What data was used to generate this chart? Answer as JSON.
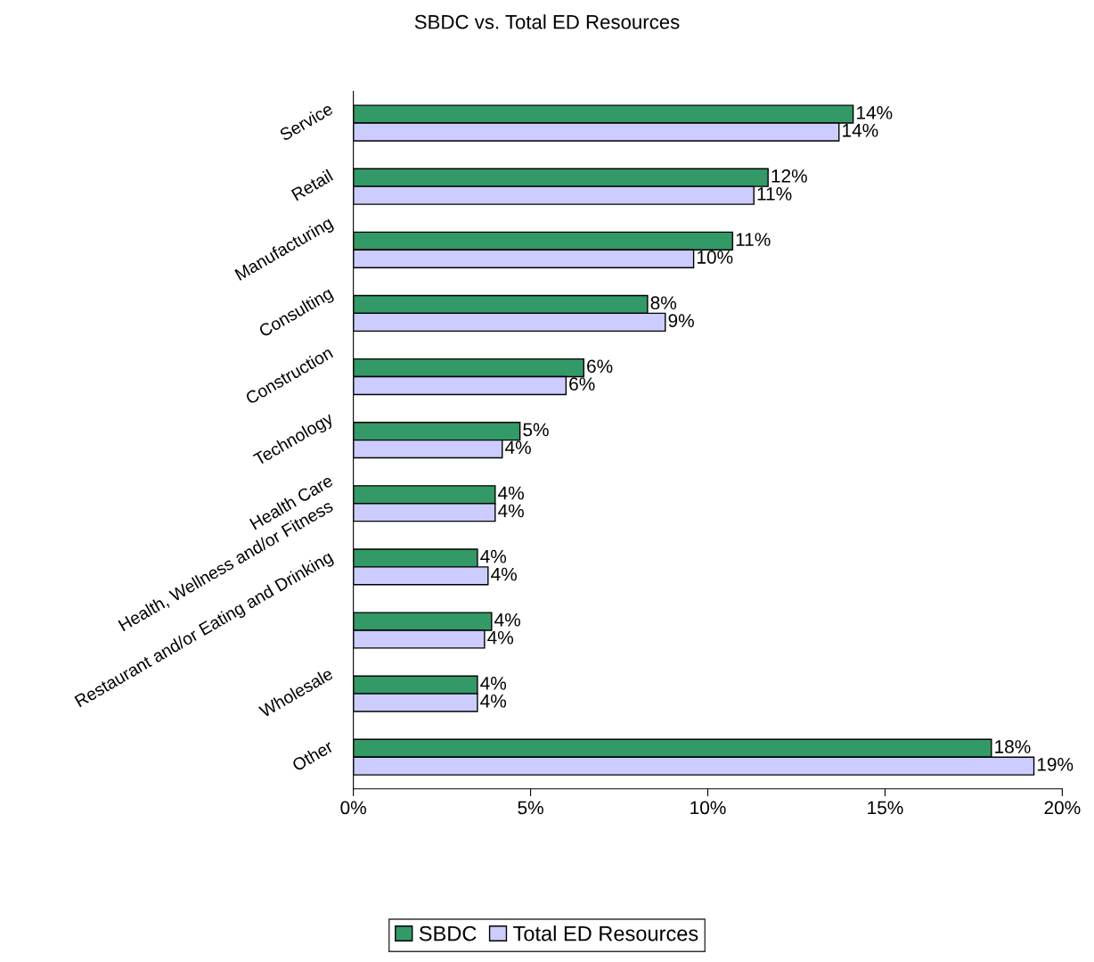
{
  "chart_data": {
    "type": "bar",
    "orientation": "horizontal",
    "title": "SBDC vs. Total ED Resources",
    "categories": [
      "Service",
      "Retail",
      "Manufacturing",
      "Consulting",
      "Construction",
      "Technology",
      "Health Care",
      "Health, Wellness and/or Fitness",
      "Restaurant and/or Eating and Drinking",
      "Wholesale",
      "Other"
    ],
    "series": [
      {
        "name": "SBDC",
        "color": "#339966",
        "values": [
          14.1,
          11.7,
          10.7,
          8.3,
          6.5,
          4.7,
          4.0,
          3.5,
          3.9,
          3.5,
          18.0
        ],
        "value_labels": [
          "14%",
          "12%",
          "11%",
          "8%",
          "6%",
          "5%",
          "4%",
          "4%",
          "4%",
          "4%",
          "18%"
        ]
      },
      {
        "name": "Total ED Resources",
        "color": "#ccccff",
        "values": [
          13.7,
          11.3,
          9.6,
          8.8,
          6.0,
          4.2,
          4.0,
          3.8,
          3.7,
          3.5,
          19.2
        ],
        "value_labels": [
          "14%",
          "11%",
          "10%",
          "9%",
          "6%",
          "4%",
          "4%",
          "4%",
          "4%",
          "4%",
          "19%"
        ]
      }
    ],
    "xlim": [
      0,
      20
    ],
    "xticks": [
      {
        "value": 0,
        "label": "0%"
      },
      {
        "value": 5,
        "label": "5%"
      },
      {
        "value": 10,
        "label": "10%"
      },
      {
        "value": 15,
        "label": "15%"
      },
      {
        "value": 20,
        "label": "20%"
      }
    ],
    "grid": false,
    "legend": "bottom"
  }
}
